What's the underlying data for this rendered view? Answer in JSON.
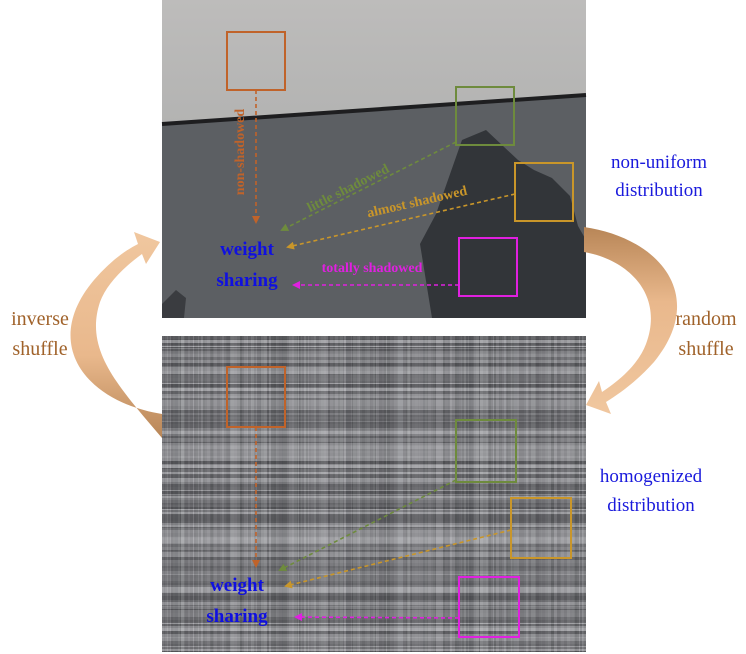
{
  "panels": {
    "top": {
      "labels": {
        "non_shadowed": "non-shadowed",
        "little_shadowed": "little shadowed",
        "almost_shadowed": "almost shadowed",
        "totally_shadowed": "totally shadowed",
        "weight": "weight",
        "sharing": "sharing"
      }
    },
    "bottom": {
      "labels": {
        "weight": "weight",
        "sharing": "sharing"
      }
    }
  },
  "side": {
    "right_top": {
      "line1": "non-uniform",
      "line2": "distribution"
    },
    "right_mid": {
      "line1": "random",
      "line2": "shuffle"
    },
    "right_bottom": {
      "line1": "homogenized",
      "line2": "distribution"
    },
    "left_mid": {
      "line1": "inverse",
      "line2": "shuffle"
    }
  },
  "colors": {
    "non_shadowed": "#c0632a",
    "little_shadowed": "#6e8b3d",
    "almost_shadowed": "#c9962a",
    "totally_shadowed": "#e020e0",
    "weight_sharing": "#1010e0",
    "distribution_text": "#1a1adc",
    "shuffle_text": "#a0622a",
    "curve_arrow": "#e3ad7e"
  }
}
